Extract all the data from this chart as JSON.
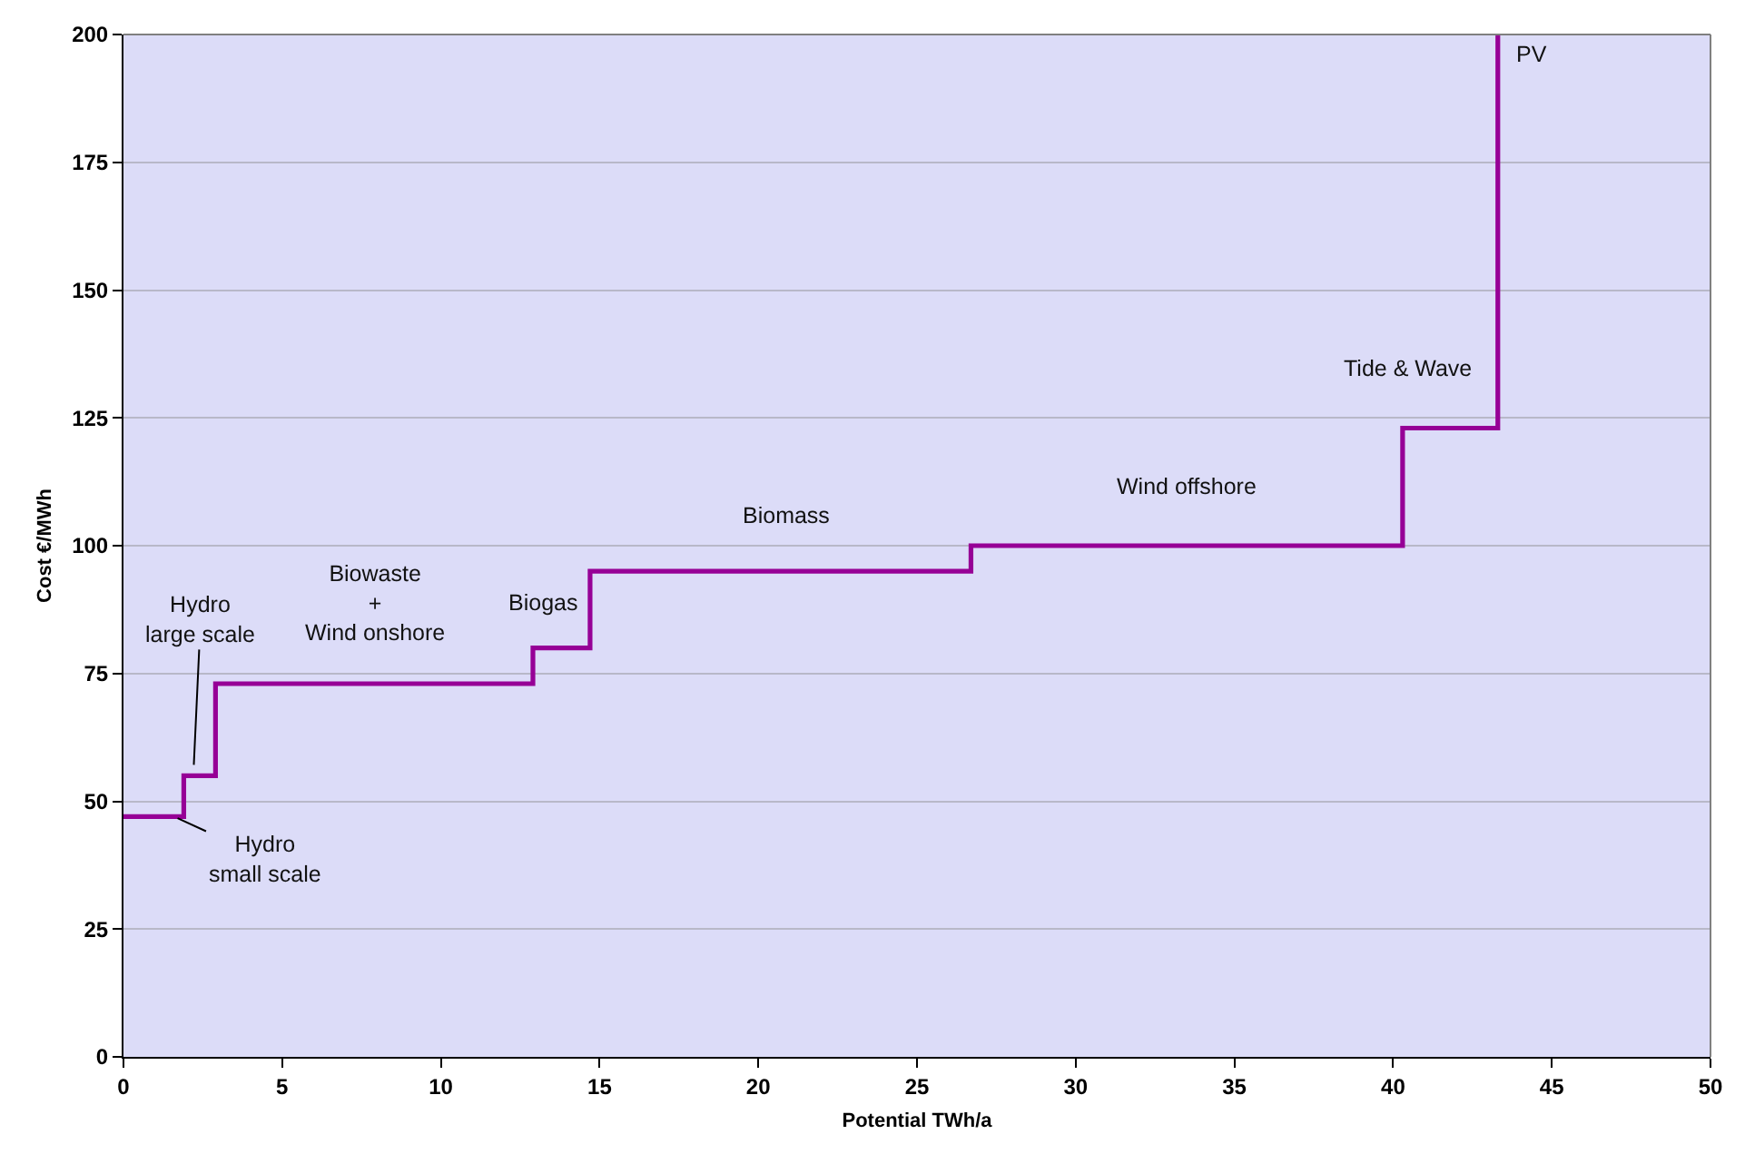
{
  "chart_data": {
    "type": "step",
    "xlabel": "Potential TWh/a",
    "ylabel": "Cost €/MWh",
    "x": [
      0,
      1.9,
      2.9,
      12.9,
      14.7,
      26.7,
      40.3,
      43.3
    ],
    "series": [
      {
        "color": "#960096",
        "values": [
          47,
          55,
          73,
          80,
          95,
          100,
          123,
          200
        ]
      }
    ],
    "xlim": [
      0,
      50
    ],
    "xticks": [
      0,
      5,
      10,
      15,
      20,
      25,
      30,
      35,
      40,
      45,
      50
    ],
    "ylim": [
      0,
      200
    ],
    "yticks": [
      0,
      25,
      50,
      75,
      100,
      125,
      150,
      175,
      200
    ],
    "grid": "y",
    "annotations": [
      {
        "text": "Hydro\nsmall scale",
        "x": 1.6,
        "y": 47
      },
      {
        "text": "Hydro\nlarge scale",
        "x": 2.2,
        "y": 55
      },
      {
        "text": "Biowaste\n+\nWind onshore",
        "x": 7.9,
        "y": 73
      },
      {
        "text": "Biogas",
        "x": 13.2,
        "y": 80
      },
      {
        "text": "Biomass",
        "x": 20.9,
        "y": 95
      },
      {
        "text": "Wind offshore",
        "x": 33.5,
        "y": 100
      },
      {
        "text": "Tide & Wave",
        "x": 40.5,
        "y": 123
      },
      {
        "text": "PV",
        "x": 43.3,
        "y": 196
      }
    ]
  }
}
